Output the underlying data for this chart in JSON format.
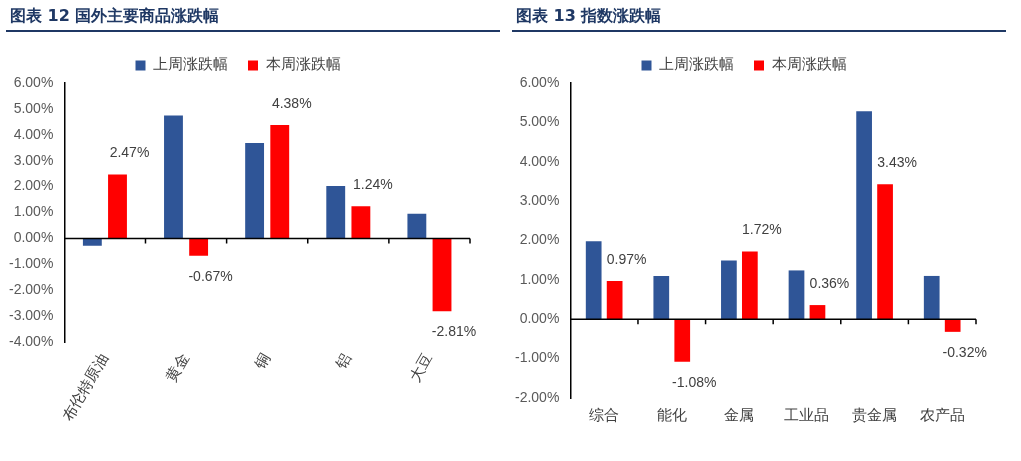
{
  "chart_data": [
    {
      "type": "bar",
      "title": "图表 12 国外主要商品涨跌幅",
      "categories": [
        "布伦特原油",
        "黄金",
        "铜",
        "铝",
        "大豆"
      ],
      "series": [
        {
          "name": "上周涨跌幅",
          "color": "#2f5597",
          "values": [
            -0.28,
            4.75,
            3.68,
            2.02,
            0.95
          ]
        },
        {
          "name": "本周涨跌幅",
          "color": "#ff0000",
          "values": [
            2.47,
            -0.67,
            4.38,
            1.24,
            -2.81
          ],
          "value_labels": [
            "2.47%",
            "-0.67%",
            "4.38%",
            "1.24%",
            "-2.81%"
          ]
        }
      ],
      "ylim": [
        -4,
        6
      ],
      "yticks": [
        {
          "value": -4,
          "label": "-4.00%"
        },
        {
          "value": -3,
          "label": "-3.00%"
        },
        {
          "value": -2,
          "label": "-2.00%"
        },
        {
          "value": -1,
          "label": "-1.00%"
        },
        {
          "value": 0,
          "label": "0.00%"
        },
        {
          "value": 1,
          "label": "1.00%"
        },
        {
          "value": 2,
          "label": "2.00%"
        },
        {
          "value": 3,
          "label": "3.00%"
        },
        {
          "value": 4,
          "label": "4.00%"
        },
        {
          "value": 5,
          "label": "5.00%"
        },
        {
          "value": 6,
          "label": "6.00%"
        }
      ],
      "legend": "top"
    },
    {
      "type": "bar",
      "title": "图表 13 指数涨跌幅",
      "categories": [
        "综合",
        "能化",
        "金属",
        "工业品",
        "贵金属",
        "农产品"
      ],
      "series": [
        {
          "name": "上周涨跌幅",
          "color": "#2f5597",
          "values": [
            1.98,
            1.1,
            1.49,
            1.24,
            5.28,
            1.1
          ]
        },
        {
          "name": "本周涨跌幅",
          "color": "#ff0000",
          "values": [
            0.97,
            -1.08,
            1.72,
            0.36,
            3.43,
            -0.32
          ],
          "value_labels": [
            "0.97%",
            "-1.08%",
            "1.72%",
            "0.36%",
            "3.43%",
            "-0.32%"
          ]
        }
      ],
      "ylim": [
        -2,
        6
      ],
      "yticks": [
        {
          "value": -2,
          "label": "-2.00%"
        },
        {
          "value": -1,
          "label": "-1.00%"
        },
        {
          "value": 0,
          "label": "0.00%"
        },
        {
          "value": 1,
          "label": "1.00%"
        },
        {
          "value": 2,
          "label": "2.00%"
        },
        {
          "value": 3,
          "label": "3.00%"
        },
        {
          "value": 4,
          "label": "4.00%"
        },
        {
          "value": 5,
          "label": "5.00%"
        },
        {
          "value": 6,
          "label": "6.00%"
        }
      ],
      "legend": "top"
    }
  ]
}
